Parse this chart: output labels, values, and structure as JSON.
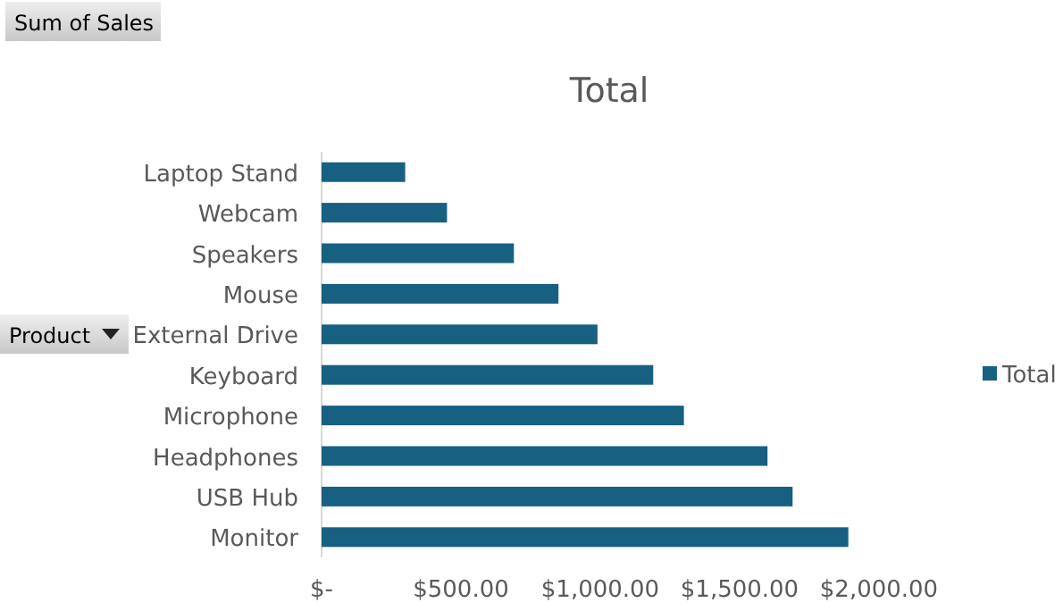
{
  "chart_data": {
    "type": "bar",
    "orientation": "horizontal",
    "title": "Total",
    "ylabel": "Product",
    "annotations": [
      "Sum of Sales"
    ],
    "categories": [
      "Laptop Stand",
      "Webcam",
      "Speakers",
      "Mouse",
      "External Drive",
      "Keyboard",
      "Microphone",
      "Headphones",
      "USB Hub",
      "Monitor"
    ],
    "series": [
      {
        "name": "Total",
        "color": "#176082",
        "values": [
          300,
          450,
          690,
          850,
          990,
          1190,
          1300,
          1600,
          1690,
          1890
        ]
      }
    ],
    "xlim": [
      0,
      2000
    ],
    "xticks": [
      {
        "value": 0,
        "label": "$-"
      },
      {
        "value": 500,
        "label": "$500.00"
      },
      {
        "value": 1000,
        "label": "$1,000.00"
      },
      {
        "value": 1500,
        "label": "$1,500.00"
      },
      {
        "value": 2000,
        "label": "$2,000.00"
      }
    ],
    "grid": false,
    "legend": "right"
  }
}
